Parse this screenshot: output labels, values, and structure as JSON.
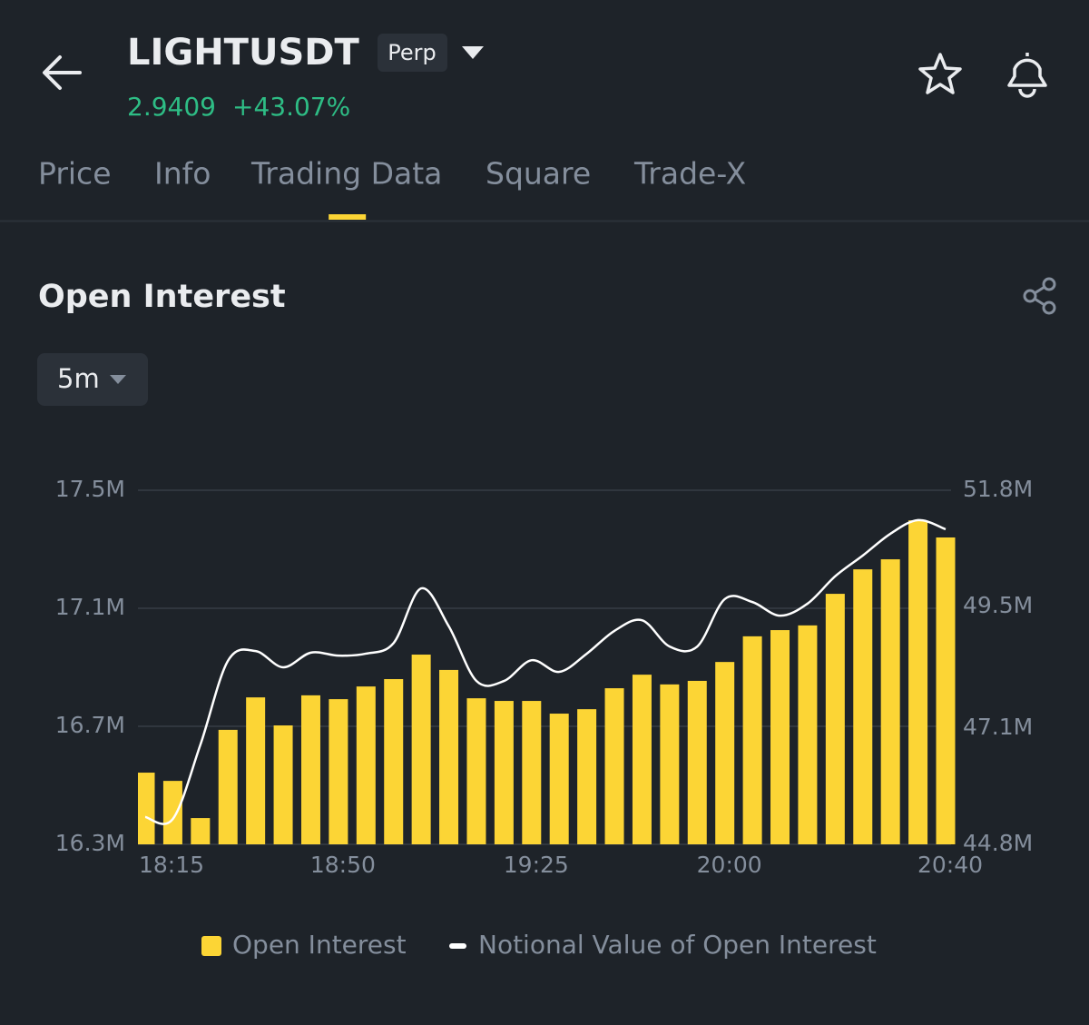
{
  "header": {
    "symbol": "LIGHTUSDT",
    "badge": "Perp",
    "price": "2.9409",
    "change": "+43.07%"
  },
  "tabs": [
    "Price",
    "Info",
    "Trading Data",
    "Square",
    "Trade-X"
  ],
  "active_tab": 2,
  "interval": "5m",
  "chart_data": {
    "type": "bar",
    "title": "Open Interest",
    "categories": [
      "18:15",
      null,
      null,
      null,
      null,
      null,
      null,
      "18:50",
      null,
      null,
      null,
      null,
      null,
      null,
      "19:25",
      null,
      null,
      null,
      null,
      null,
      null,
      "20:00",
      null,
      null,
      null,
      null,
      null,
      null,
      null,
      "20:40"
    ],
    "series": [
      {
        "name": "Open Interest",
        "type": "bar",
        "color": "#fcd535",
        "values": [
          16543000,
          16515000,
          16389000,
          16688000,
          16798000,
          16703000,
          16805000,
          16792000,
          16835000,
          16860000,
          16943000,
          16891000,
          16795000,
          16786000,
          16786000,
          16743000,
          16758000,
          16829000,
          16875000,
          16842000,
          16854000,
          16918000,
          17005000,
          17026000,
          17042000,
          17149000,
          17232000,
          17266000,
          17398000,
          17340000
        ]
      },
      {
        "name": "Notional Value of Open Interest",
        "type": "line",
        "color": "#ffffff",
        "axis": "y2",
        "values": [
          45340000,
          45300000,
          46770000,
          48430000,
          48620000,
          48300000,
          48590000,
          48530000,
          48570000,
          48780000,
          49860000,
          49110000,
          48030000,
          48030000,
          48440000,
          48210000,
          48570000,
          49020000,
          49230000,
          48710000,
          48710000,
          49650000,
          49590000,
          49320000,
          49560000,
          50100000,
          50510000,
          50940000,
          51210000,
          51030000
        ]
      }
    ],
    "ylim": [
      16300000,
      17500000
    ],
    "yticks": [
      {
        "value": 16300000,
        "label": "16.3M"
      },
      {
        "value": 16700000,
        "label": "16.7M"
      },
      {
        "value": 17100000,
        "label": "17.1M"
      },
      {
        "value": 17500000,
        "label": "17.5M"
      }
    ],
    "y2lim": [
      44800000,
      51800000
    ],
    "y2ticks": [
      {
        "value": 44800000,
        "label": "44.8M"
      },
      {
        "value": 47100000,
        "label": "47.1M"
      },
      {
        "value": 49500000,
        "label": "49.5M"
      },
      {
        "value": 51800000,
        "label": "51.8M"
      }
    ],
    "grid": true
  }
}
